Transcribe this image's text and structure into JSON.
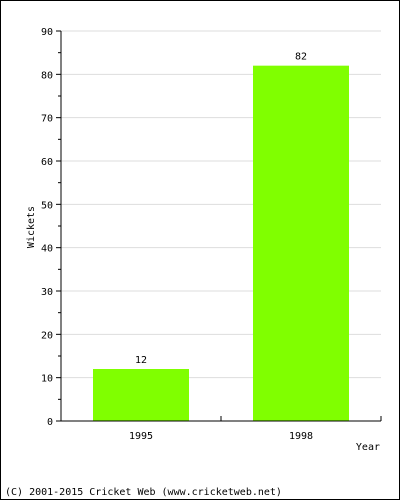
{
  "chart_data": {
    "type": "bar",
    "categories": [
      "1995",
      "1998"
    ],
    "values": [
      12,
      82
    ],
    "data_labels": [
      "12",
      "82"
    ],
    "xlabel": "Year",
    "ylabel": "Wickets",
    "ylim": [
      0,
      90
    ],
    "yticks": [
      0,
      10,
      20,
      30,
      40,
      50,
      60,
      70,
      80,
      90
    ],
    "grid": true,
    "bar_color": "#80ff00",
    "grid_color": "#dddddd",
    "legend": null
  },
  "footer": {
    "copyright": "(C) 2001-2015 Cricket Web (www.cricketweb.net)"
  }
}
